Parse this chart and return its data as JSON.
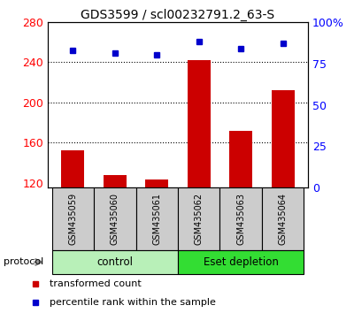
{
  "title": "GDS3599 / scl00232791.2_63-S",
  "samples": [
    "GSM435059",
    "GSM435060",
    "GSM435061",
    "GSM435062",
    "GSM435063",
    "GSM435064"
  ],
  "bar_values": [
    152,
    128,
    123,
    242,
    172,
    212
  ],
  "percentile_values": [
    83,
    81,
    80,
    88,
    84,
    87
  ],
  "bar_color": "#cc0000",
  "dot_color": "#0000cc",
  "ylim_left": [
    115,
    280
  ],
  "ylim_right": [
    0,
    100
  ],
  "yticks_left": [
    120,
    160,
    200,
    240,
    280
  ],
  "yticks_right": [
    0,
    25,
    50,
    75,
    100
  ],
  "ytick_labels_right": [
    "0",
    "25",
    "50",
    "75",
    "100%"
  ],
  "grid_values": [
    160,
    200,
    240
  ],
  "groups": [
    {
      "label": "control",
      "indices": [
        0,
        1,
        2
      ],
      "color": "#b8f0b8"
    },
    {
      "label": "Eset depletion",
      "indices": [
        3,
        4,
        5
      ],
      "color": "#33dd33"
    }
  ],
  "protocol_label": "protocol",
  "legend_items": [
    {
      "label": "transformed count",
      "color": "#cc0000"
    },
    {
      "label": "percentile rank within the sample",
      "color": "#0000cc"
    }
  ],
  "bar_width": 0.55,
  "fig_width": 4.0,
  "fig_height": 3.54,
  "dpi": 100
}
